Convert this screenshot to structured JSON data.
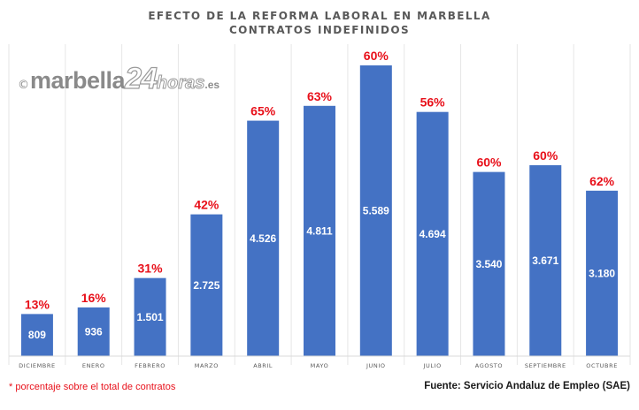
{
  "chart_data": {
    "type": "bar",
    "title": "EFECTO DE LA REFORMA LABORAL EN MARBELLA",
    "subtitle": "CONTRATOS INDEFINIDOS",
    "categories": [
      "DICIEMBRE",
      "ENERO",
      "FEBRERO",
      "MARZO",
      "ABRIL",
      "MAYO",
      "JUNIO",
      "JULIO",
      "AGOSTO",
      "SEPTIEMBRE",
      "OCTUBRE"
    ],
    "values": [
      809,
      936,
      1501,
      2725,
      4526,
      4811,
      5589,
      4694,
      3540,
      3671,
      3180
    ],
    "value_labels": [
      "809",
      "936",
      "1.501",
      "2.725",
      "4.526",
      "4.811",
      "5.589",
      "4.694",
      "3.540",
      "3.671",
      "3.180"
    ],
    "percent_labels": [
      "13%",
      "16%",
      "31%",
      "42%",
      "65%",
      "63%",
      "60%",
      "56%",
      "60%",
      "60%",
      "62%"
    ],
    "ylim": [
      0,
      6000
    ],
    "grid": "vertical",
    "bar_color": "#4472c4",
    "percent_color": "#e8101a"
  },
  "watermark": {
    "copyright": "©",
    "brand": "marbella",
    "number": "24",
    "suffix": "horas",
    "domain": ".es"
  },
  "footnote": "* porcentaje sobre el total de contratos",
  "source": "Fuente: Servicio Andaluz de Empleo (SAE)"
}
